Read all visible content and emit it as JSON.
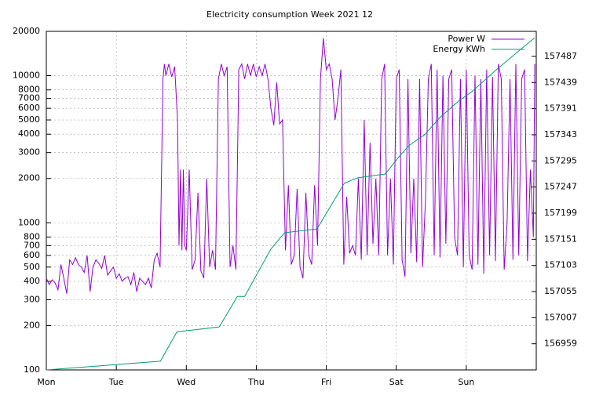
{
  "chart_data": {
    "type": "line",
    "title": "Electricity consumption Week 2021 12",
    "xlim": [
      0,
      168
    ],
    "xticks": [
      {
        "value": 0,
        "label": "Mon"
      },
      {
        "value": 24,
        "label": "Tue"
      },
      {
        "value": 48,
        "label": "Wed"
      },
      {
        "value": 72,
        "label": "Thu"
      },
      {
        "value": 96,
        "label": "Fri"
      },
      {
        "value": 120,
        "label": "Sat"
      },
      {
        "value": 144,
        "label": "Sun"
      }
    ],
    "ylim": [
      100,
      20000
    ],
    "ylog": true,
    "yticks": [
      100,
      200,
      300,
      400,
      500,
      600,
      700,
      800,
      1000,
      2000,
      3000,
      4000,
      5000,
      6000,
      7000,
      8000,
      10000,
      20000
    ],
    "y2lim": [
      156911,
      157533
    ],
    "y2ticks": [
      156959,
      157007,
      157055,
      157103,
      157151,
      157199,
      157247,
      157295,
      157343,
      157391,
      157439,
      157487
    ],
    "grid": true,
    "legend": "top-right",
    "series": [
      {
        "name": "Power W",
        "color": "#9400d3",
        "x": [
          0,
          1,
          2,
          3,
          4,
          5,
          6,
          7,
          8,
          9,
          10,
          11,
          12,
          13,
          14,
          15,
          16,
          17,
          18,
          19,
          20,
          21,
          22,
          23,
          24,
          25,
          26,
          27,
          28,
          29,
          30,
          31,
          32,
          33,
          34,
          35,
          36,
          37,
          38,
          39,
          40,
          40.5,
          41,
          42,
          43,
          44,
          45,
          45.5,
          46,
          46.5,
          47,
          47.5,
          48,
          49,
          50,
          51,
          52,
          53,
          54,
          55,
          56,
          57,
          58,
          59,
          60,
          61,
          62,
          63,
          64,
          65,
          66,
          67,
          68,
          69,
          70,
          71,
          72,
          73,
          74,
          75,
          76,
          77,
          78,
          79,
          80,
          81,
          82,
          83,
          84,
          85,
          86,
          87,
          88,
          89,
          90,
          91,
          92,
          93,
          94,
          95,
          96,
          97,
          98,
          99,
          100,
          101,
          102,
          103,
          104,
          105,
          106,
          107,
          108,
          109,
          110,
          111,
          112,
          113,
          114,
          115,
          116,
          117,
          118,
          119,
          120,
          121,
          122,
          123,
          124,
          125,
          126,
          127,
          128,
          129,
          130,
          131,
          132,
          133,
          134,
          135,
          136,
          137,
          138,
          139,
          140,
          141,
          142,
          143,
          144,
          145,
          146,
          147,
          148,
          149,
          150,
          151,
          152,
          153,
          154,
          155,
          156,
          157,
          158,
          159,
          160,
          161,
          162,
          163,
          164,
          165,
          166,
          167,
          167.5
        ],
        "values": [
          420,
          380,
          410,
          390,
          350,
          520,
          420,
          330,
          560,
          520,
          580,
          520,
          500,
          460,
          600,
          340,
          500,
          560,
          530,
          490,
          600,
          440,
          470,
          500,
          420,
          450,
          400,
          420,
          430,
          380,
          460,
          340,
          420,
          400,
          380,
          420,
          360,
          560,
          620,
          500,
          9500,
          12000,
          10000,
          12000,
          9800,
          11500,
          5000,
          700,
          2300,
          650,
          2300,
          700,
          650,
          2300,
          480,
          560,
          1600,
          470,
          420,
          2000,
          500,
          650,
          480,
          9500,
          12000,
          10000,
          11500,
          500,
          700,
          480,
          11000,
          12000,
          9500,
          12000,
          10000,
          12000,
          9800,
          11500,
          10000,
          12000,
          9500,
          6000,
          4600,
          9000,
          4700,
          5000,
          650,
          1800,
          520,
          600,
          1700,
          500,
          420,
          1600,
          600,
          520,
          1800,
          700,
          9500,
          18000,
          11000,
          12000,
          9500,
          5000,
          7000,
          11000,
          520,
          1500,
          620,
          700,
          600,
          2000,
          560,
          5000,
          600,
          3500,
          720,
          2000,
          600,
          9500,
          12000,
          600,
          2000,
          520,
          9500,
          11000,
          560,
          430,
          9500,
          620,
          2000,
          540,
          9500,
          500,
          1400,
          9500,
          12000,
          600,
          11000,
          580,
          10000,
          720,
          9500,
          11000,
          800,
          600,
          9500,
          500,
          11000,
          600,
          480,
          10000,
          520,
          9500,
          450,
          11000,
          600,
          9800,
          550,
          12000,
          9500,
          480,
          1000,
          9500,
          560,
          12000,
          600,
          9500,
          11000,
          550,
          2300,
          800,
          12000
        ]
      },
      {
        "name": "Energy KWh",
        "color": "#009e73",
        "axis": "y2",
        "x": [
          0,
          39.1,
          44.8,
          59.3,
          65.5,
          68,
          77,
          81.7,
          92.8,
          102.2,
          106.8,
          116.2,
          121,
          124.3,
          129.7,
          135,
          141.6,
          145.9,
          154,
          162,
          167.4
        ],
        "values": [
          156911,
          156927,
          156981,
          156990,
          157046,
          157046,
          157133,
          157163,
          157170,
          157254,
          157264,
          157271,
          157303,
          157323,
          157343,
          157375,
          157406,
          157422,
          157461,
          157497,
          157521
        ]
      }
    ]
  }
}
